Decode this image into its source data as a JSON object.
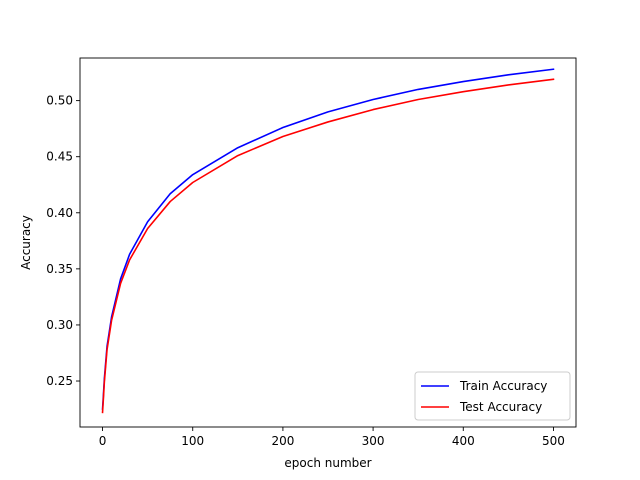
{
  "chart_data": {
    "type": "line",
    "title": "",
    "xlabel": "epoch number",
    "ylabel": "Accuracy",
    "xlim": [
      -25,
      525
    ],
    "ylim": [
      0.209,
      0.538
    ],
    "xticks": [
      0,
      100,
      200,
      300,
      400,
      500
    ],
    "yticks": [
      0.25,
      0.3,
      0.35,
      0.4,
      0.45,
      0.5
    ],
    "ytick_labels": [
      "0.25",
      "0.30",
      "0.35",
      "0.40",
      "0.45",
      "0.50"
    ],
    "grid": false,
    "legend_position": "lower-right",
    "series": [
      {
        "name": "Train Accuracy",
        "color": "#0000ff",
        "x": [
          0,
          1,
          2,
          5,
          10,
          20,
          30,
          50,
          75,
          100,
          150,
          200,
          250,
          300,
          350,
          400,
          450,
          500
        ],
        "y": [
          0.225,
          0.238,
          0.252,
          0.281,
          0.307,
          0.341,
          0.363,
          0.392,
          0.417,
          0.434,
          0.458,
          0.476,
          0.49,
          0.501,
          0.51,
          0.517,
          0.523,
          0.528
        ]
      },
      {
        "name": "Test Accuracy",
        "color": "#ff0000",
        "x": [
          0,
          1,
          2,
          5,
          10,
          20,
          30,
          50,
          75,
          100,
          150,
          200,
          250,
          300,
          350,
          400,
          450,
          500
        ],
        "y": [
          0.222,
          0.235,
          0.249,
          0.278,
          0.304,
          0.337,
          0.358,
          0.386,
          0.41,
          0.427,
          0.451,
          0.468,
          0.481,
          0.492,
          0.501,
          0.508,
          0.514,
          0.519
        ]
      }
    ]
  }
}
